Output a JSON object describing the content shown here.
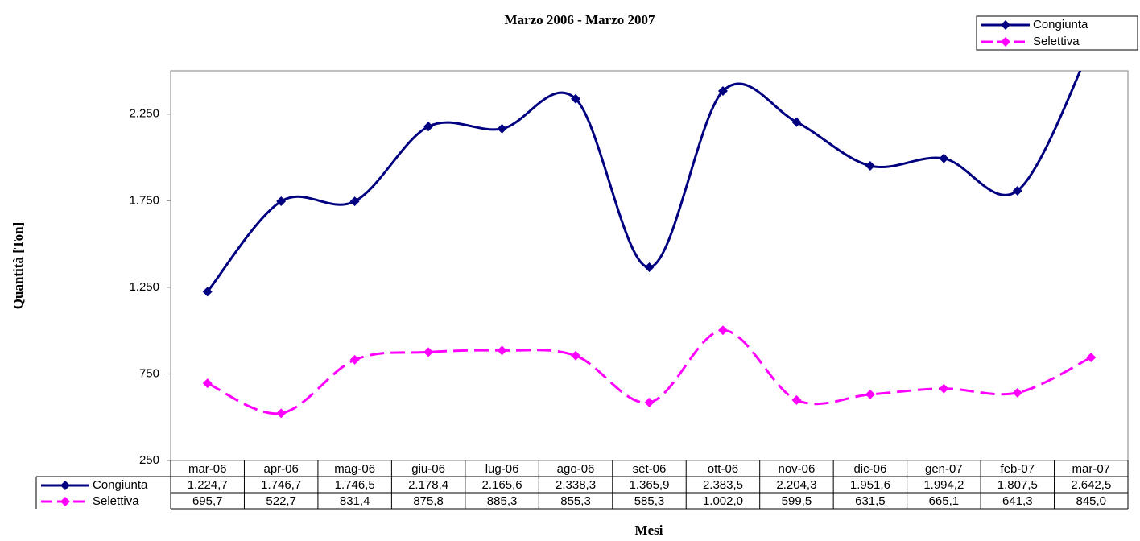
{
  "chart_data": {
    "type": "line",
    "subtitle": "Marzo 2006 - Marzo 2007",
    "y_label": "Quantità [Ton]",
    "x_label": "Mesi",
    "categories": [
      "mar-06",
      "apr-06",
      "mag-06",
      "giu-06",
      "lug-06",
      "ago-06",
      "set-06",
      "ott-06",
      "nov-06",
      "dic-06",
      "gen-07",
      "feb-07",
      "mar-07"
    ],
    "series": [
      {
        "name": "Congiunta",
        "color": "#000080",
        "dashed": false,
        "values": [
          1224.7,
          1746.7,
          1746.5,
          2178.4,
          2165.6,
          2338.3,
          1365.9,
          2383.5,
          2204.3,
          1951.6,
          1994.2,
          1807.5,
          2642.5
        ],
        "value_labels": [
          "1.224,7",
          "1.746,7",
          "1.746,5",
          "2.178,4",
          "2.165,6",
          "2.338,3",
          "1.365,9",
          "2.383,5",
          "2.204,3",
          "1.951,6",
          "1.994,2",
          "1.807,5",
          "2.642,5"
        ]
      },
      {
        "name": "Selettiva",
        "color": "#ff00ff",
        "dashed": true,
        "values": [
          695.7,
          522.7,
          831.4,
          875.8,
          885.3,
          855.3,
          585.3,
          1002.0,
          599.5,
          631.5,
          665.1,
          641.3,
          845.0
        ],
        "value_labels": [
          "695,7",
          "522,7",
          "831,4",
          "875,8",
          "885,3",
          "855,3",
          "585,3",
          "1.002,0",
          "599,5",
          "631,5",
          "665,1",
          "641,3",
          "845,0"
        ]
      }
    ],
    "ylim": [
      250,
      2500
    ],
    "yticks": [
      250,
      750,
      {
        "value": 1250,
        "label": "1.250"
      },
      {
        "value": 1750,
        "label": "1.750"
      },
      {
        "value": 2250,
        "label": "2.250"
      }
    ],
    "grid": false,
    "legend": "top-right",
    "smooth": true
  }
}
